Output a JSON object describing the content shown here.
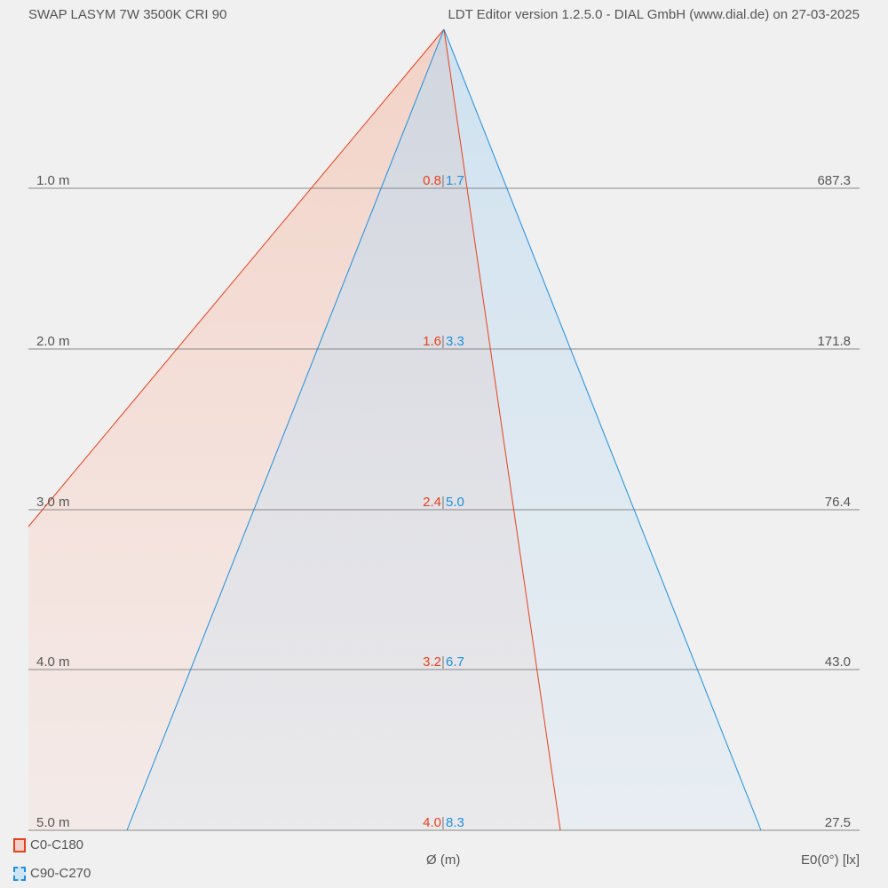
{
  "header": {
    "title": "SWAP LASYM 7W 3500K CRI 90",
    "version": "LDT Editor version 1.2.5.0 - DIAL GmbH (www.dial.de) on 27-03-2025"
  },
  "colors": {
    "c0": "#e8401c",
    "c90": "#1e8fe0"
  },
  "rows": [
    {
      "distance": "1.0 m",
      "d_c0": "0.8",
      "d_c90": "1.7",
      "e0": "687.3"
    },
    {
      "distance": "2.0 m",
      "d_c0": "1.6",
      "d_c90": "3.3",
      "e0": "171.8"
    },
    {
      "distance": "3.0 m",
      "d_c0": "2.4",
      "d_c90": "5.0",
      "e0": "76.4"
    },
    {
      "distance": "4.0 m",
      "d_c0": "3.2",
      "d_c90": "6.7",
      "e0": "43.0"
    },
    {
      "distance": "5.0 m",
      "d_c0": "4.0",
      "d_c90": "8.3",
      "e0": "27.5"
    }
  ],
  "legend": [
    {
      "label": "C0-C180",
      "icon": "red-square-icon"
    },
    {
      "label": "C90-C270",
      "icon": "blue-dashed-square-icon"
    }
  ],
  "footer": {
    "diameter_label": "Ø (m)",
    "illuminance_label": "E0(0°) [lx]"
  }
}
